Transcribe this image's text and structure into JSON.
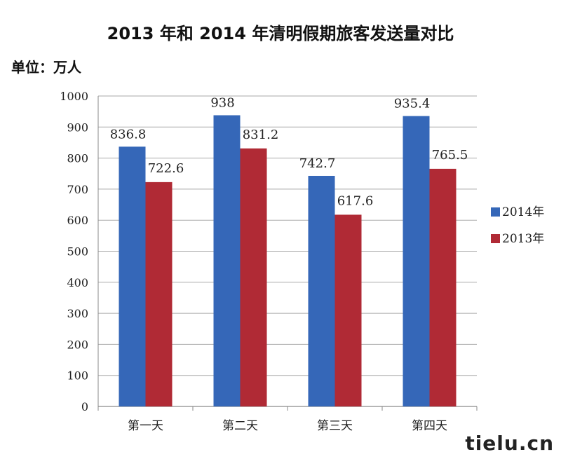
{
  "chart_data": {
    "type": "bar",
    "title": "2013 年和 2014 年清明假期旅客发送量对比",
    "unit_label": "单位：万人",
    "categories": [
      "第一天",
      "第二天",
      "第三天",
      "第四天"
    ],
    "series": [
      {
        "name": "2014年",
        "values": [
          836.8,
          938,
          742.7,
          935.4
        ],
        "labels": [
          "836.8",
          "938",
          "742.7",
          "935.4"
        ],
        "color": "#3567b8"
      },
      {
        "name": "2013年",
        "values": [
          722.6,
          831.2,
          617.6,
          765.5
        ],
        "labels": [
          "722.6",
          "831.2",
          "617.6",
          "765.5"
        ],
        "color": "#b02a35"
      }
    ],
    "ylim": [
      0,
      1000
    ],
    "yticks": [
      "0",
      "100",
      "200",
      "300",
      "400",
      "500",
      "600",
      "700",
      "800",
      "900",
      "1000"
    ],
    "grid": true,
    "legend_position": "right"
  },
  "watermark": "tielu.cn"
}
